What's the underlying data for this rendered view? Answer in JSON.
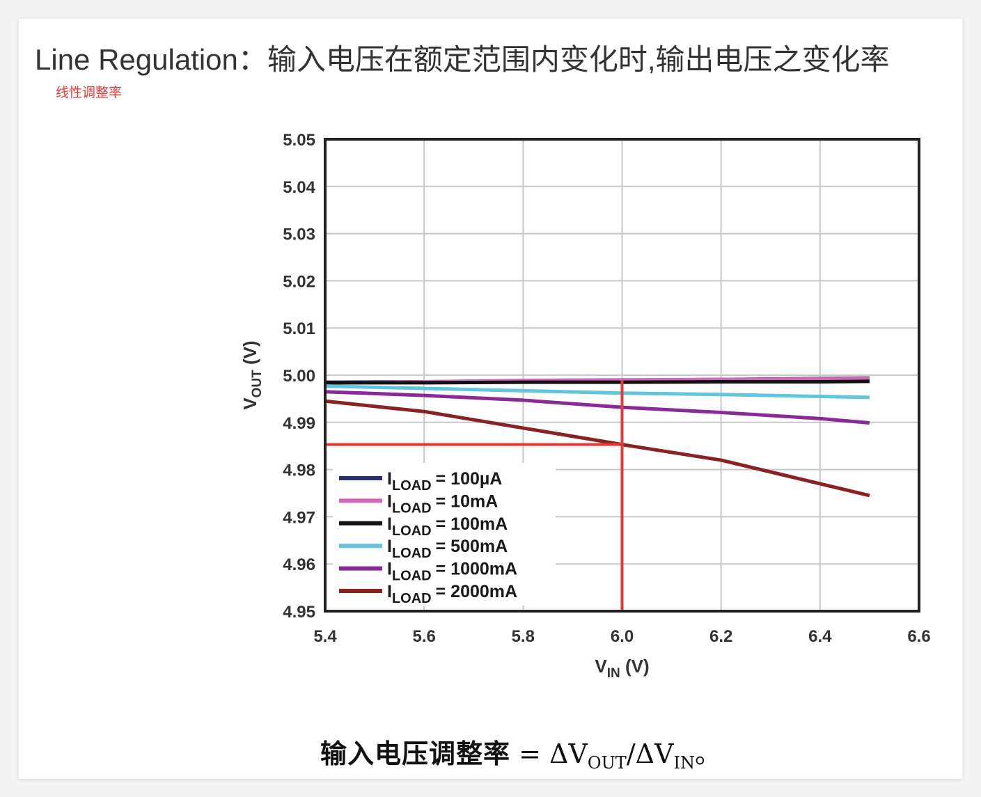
{
  "page": {
    "title": "Line Regulation：输入电压在额定范围内变化时,输出电压之变化率",
    "subtitle": "线性调整率",
    "formula": {
      "prefix": "输入电压调整率",
      "eq": " = ΔV",
      "sub_out": "OUT",
      "mid": "/ΔV",
      "sub_in": "IN",
      "suffix": "。"
    }
  },
  "chart_data": {
    "type": "line",
    "xlabel_main": "V",
    "xlabel_sub": "IN",
    "xlabel_unit": " (V)",
    "ylabel_main": "V",
    "ylabel_sub": "OUT",
    "ylabel_unit": " (V)",
    "xlim": [
      5.4,
      6.6
    ],
    "ylim": [
      4.95,
      5.05
    ],
    "xticks": [
      "5.4",
      "5.6",
      "5.8",
      "6.0",
      "6.2",
      "6.4",
      "6.6"
    ],
    "yticks": [
      "5.05",
      "5.04",
      "5.03",
      "5.02",
      "5.01",
      "5.00",
      "4.99",
      "4.98",
      "4.97",
      "4.96",
      "4.95"
    ],
    "grid": true,
    "legend_position": "bottom-left",
    "legend_prefix": "I",
    "legend_sub": "LOAD",
    "series": [
      {
        "name": "= 100µA",
        "color": "#2b2d73",
        "x": [
          5.4,
          5.6,
          5.8,
          6.0,
          6.2,
          6.4,
          6.5
        ],
        "y": [
          4.9985,
          4.9986,
          4.9988,
          4.9989,
          4.9991,
          4.9993,
          4.9994
        ]
      },
      {
        "name": "= 10mA",
        "color": "#d466b8",
        "x": [
          5.4,
          5.6,
          5.8,
          6.0,
          6.2,
          6.4,
          6.5
        ],
        "y": [
          4.9983,
          4.9986,
          4.9989,
          4.999,
          4.9991,
          4.9992,
          4.9993
        ]
      },
      {
        "name": "= 100mA",
        "color": "#111111",
        "x": [
          5.4,
          5.6,
          5.8,
          6.0,
          6.2,
          6.4,
          6.5
        ],
        "y": [
          4.9984,
          4.9984,
          4.9985,
          4.9985,
          4.9986,
          4.9986,
          4.9987
        ]
      },
      {
        "name": "= 500mA",
        "color": "#5fc6dd",
        "x": [
          5.4,
          5.6,
          5.8,
          6.0,
          6.2,
          6.4,
          6.5
        ],
        "y": [
          4.9977,
          4.9972,
          4.9967,
          4.9962,
          4.9959,
          4.9955,
          4.9953
        ]
      },
      {
        "name": "= 1000mA",
        "color": "#8a2a96",
        "x": [
          5.4,
          5.6,
          5.8,
          6.0,
          6.2,
          6.4,
          6.5
        ],
        "y": [
          4.9965,
          4.9957,
          4.9947,
          4.9932,
          4.9921,
          4.9908,
          4.9899
        ]
      },
      {
        "name": "= 2000mA",
        "color": "#8a2222",
        "x": [
          5.4,
          5.6,
          5.8,
          6.0,
          6.2,
          6.4,
          6.5
        ],
        "y": [
          4.9945,
          4.9923,
          4.9888,
          4.9853,
          4.982,
          4.977,
          4.9745
        ]
      }
    ],
    "annotation": {
      "color": "#e53935",
      "point": {
        "x": 6.0,
        "y": 4.9853
      }
    }
  }
}
